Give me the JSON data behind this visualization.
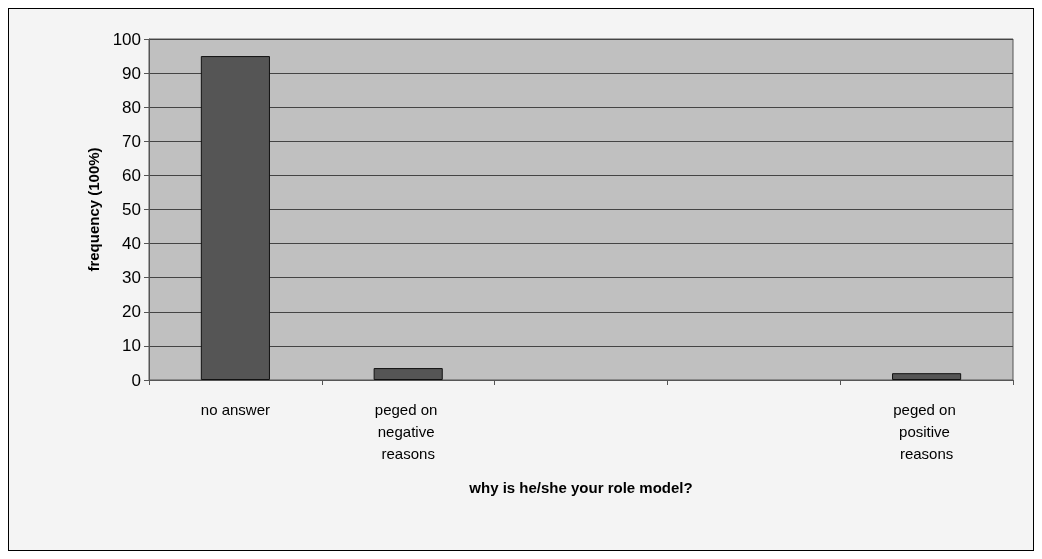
{
  "chart_data": {
    "type": "bar",
    "xlabel": "why is he/she your role model?",
    "ylabel": "frequency (100%)",
    "categories": [
      "no answer",
      "peged on negative reasons",
      null,
      null,
      "peged on positive reasons"
    ],
    "values": [
      95,
      3.5,
      null,
      null,
      2
    ],
    "color": "#555555",
    "ylim": [
      0,
      100
    ],
    "yticks": [
      0,
      10,
      20,
      30,
      40,
      50,
      60,
      70,
      80,
      90,
      100
    ],
    "grid": "y"
  }
}
